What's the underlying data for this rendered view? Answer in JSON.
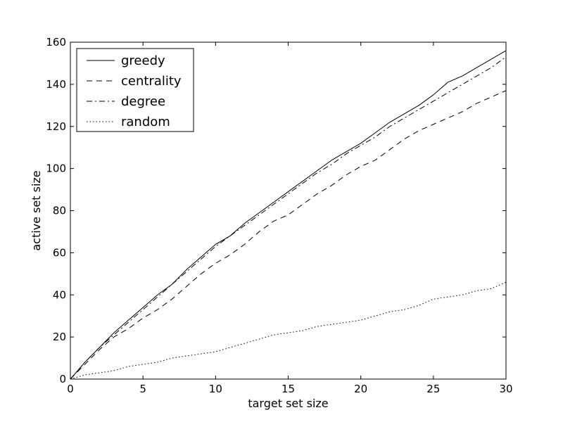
{
  "chart_data": {
    "type": "line",
    "title": "",
    "xlabel": "target set size",
    "ylabel": "active set size",
    "xlim": [
      0,
      30
    ],
    "ylim": [
      0,
      160
    ],
    "xticks": [
      0,
      5,
      10,
      15,
      20,
      25,
      30
    ],
    "yticks": [
      0,
      20,
      40,
      60,
      80,
      100,
      120,
      140,
      160
    ],
    "grid": false,
    "legend_position": "top-left",
    "line_color": "#000000",
    "x": [
      0,
      1,
      2,
      3,
      4,
      5,
      6,
      7,
      8,
      9,
      10,
      11,
      12,
      13,
      14,
      15,
      16,
      17,
      18,
      19,
      20,
      21,
      22,
      23,
      24,
      25,
      26,
      27,
      28,
      29,
      30
    ],
    "series": [
      {
        "name": "greedy",
        "style": "solid",
        "values": [
          0,
          8,
          15,
          22,
          28,
          34,
          40,
          45,
          52,
          58,
          64,
          68,
          74,
          79,
          84,
          89,
          94,
          99,
          104,
          108,
          112,
          117,
          122,
          126,
          130,
          135,
          141,
          144,
          148,
          152,
          156
        ]
      },
      {
        "name": "centrality",
        "style": "dashed",
        "values": [
          0,
          7,
          14,
          20,
          24,
          29,
          33,
          38,
          44,
          50,
          55,
          59,
          64,
          70,
          75,
          78,
          83,
          88,
          92,
          97,
          101,
          104,
          109,
          114,
          118,
          121,
          124,
          127,
          131,
          134,
          137
        ]
      },
      {
        "name": "degree",
        "style": "dashdot",
        "values": [
          0,
          8,
          15,
          21,
          27,
          33,
          39,
          45,
          51,
          57,
          63,
          68,
          73,
          78,
          83,
          88,
          93,
          98,
          102,
          107,
          111,
          115,
          120,
          124,
          128,
          132,
          136,
          140,
          144,
          148,
          153
        ]
      },
      {
        "name": "random",
        "style": "dotted",
        "values": [
          0,
          2,
          3,
          4,
          6,
          7,
          8,
          10,
          11,
          12,
          13,
          15,
          17,
          19,
          21,
          22,
          23,
          25,
          26,
          27,
          28,
          30,
          32,
          33,
          35,
          38,
          39,
          40,
          42,
          43,
          46
        ]
      }
    ]
  }
}
